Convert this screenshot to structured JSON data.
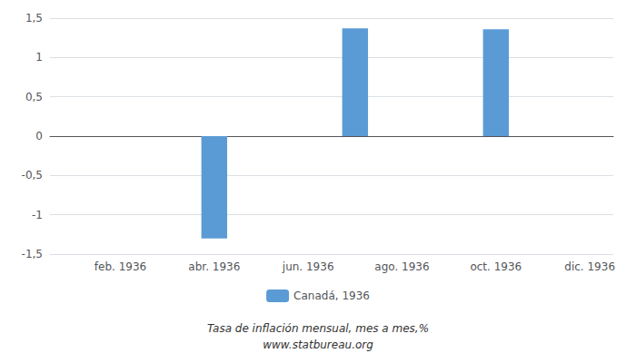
{
  "chart_data": {
    "type": "bar",
    "categories": [
      null,
      "feb. 1936",
      null,
      "abr. 1936",
      null,
      "jun. 1936",
      null,
      "ago. 1936",
      null,
      "oct. 1936",
      null,
      "dic. 1936"
    ],
    "series": [
      {
        "name": "Canadá, 1936",
        "color": "#5B9BD5",
        "values": [
          null,
          null,
          null,
          -1.3,
          null,
          null,
          1.37,
          null,
          null,
          1.36,
          null,
          null
        ]
      }
    ],
    "ylim": [
      -1.5,
      1.5
    ],
    "yticks": [
      {
        "value": -1.5,
        "label": "-1,5"
      },
      -1,
      {
        "value": -0.5,
        "label": "-0,5"
      },
      0,
      {
        "value": 0.5,
        "label": "0,5"
      },
      1,
      {
        "value": 1.5,
        "label": "1,5"
      }
    ],
    "grid": true,
    "legend": "bottom",
    "annotations": [
      "Tasa de inflación mensual, mes a mes,%",
      "www.statbureau.org"
    ]
  }
}
